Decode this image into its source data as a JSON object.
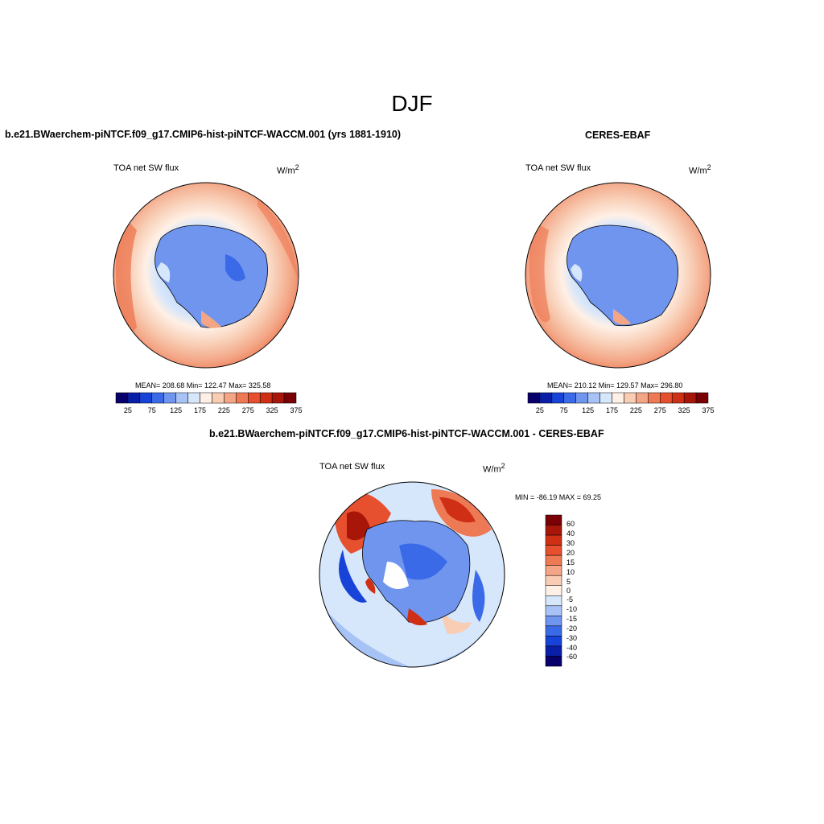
{
  "main_title": "DJF",
  "panels": [
    {
      "title": "b.e21.BWaerchem-piNTCF.f09_g17.CMIP6-hist-piNTCF-WACCM.001 (yrs 1881-1910)",
      "variable": "TOA net SW flux",
      "units": "W/m",
      "units_sup": "2",
      "stats": "MEAN= 208.68  Min= 122.47  Max= 325.58"
    },
    {
      "title": "CERES-EBAF",
      "variable": "TOA net SW flux",
      "units": "W/m",
      "units_sup": "2",
      "stats": "MEAN= 210.12  Min= 129.57  Max= 296.80"
    },
    {
      "title": "b.e21.BWaerchem-piNTCF.f09_g17.CMIP6-hist-piNTCF-WACCM.001 - CERES-EBAF",
      "variable": "TOA net SW flux",
      "units": "W/m",
      "units_sup": "2",
      "stats": "MIN = -86.19 MAX =  69.25"
    }
  ],
  "abs_colorbar": {
    "labels": [
      "25",
      "75",
      "125",
      "175",
      "225",
      "275",
      "325",
      "375"
    ],
    "colors": [
      "#08006b",
      "#0a1fa8",
      "#1743d8",
      "#3a6ae8",
      "#6f95ef",
      "#a7c2f5",
      "#d6e6fb",
      "#fff0e6",
      "#f8cdb4",
      "#f3a585",
      "#ee7a55",
      "#e6502e",
      "#cf3015",
      "#a8160a",
      "#7a0005"
    ]
  },
  "diff_colorbar": {
    "labels": [
      "60",
      "40",
      "30",
      "20",
      "15",
      "10",
      "5",
      "0",
      "-5",
      "-10",
      "-15",
      "-20",
      "-30",
      "-40",
      "-60"
    ],
    "colors": [
      "#7a0005",
      "#a8160a",
      "#cf3015",
      "#e6502e",
      "#ee7a55",
      "#f3a585",
      "#f8cdb4",
      "#fff0e6",
      "#d6e6fb",
      "#a7c2f5",
      "#6f95ef",
      "#3a6ae8",
      "#1743d8",
      "#0a1fa8",
      "#08006b"
    ]
  }
}
